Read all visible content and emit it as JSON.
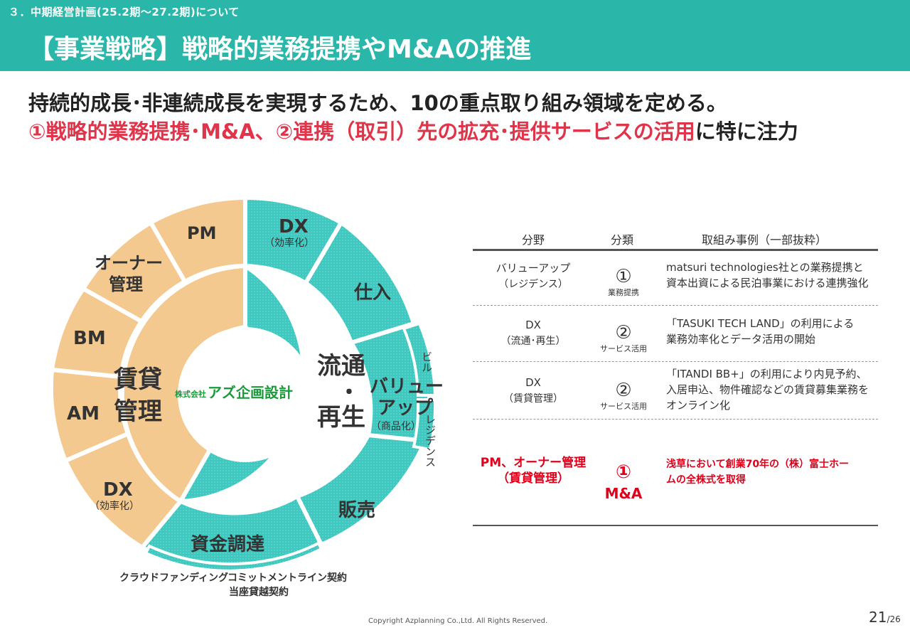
{
  "header": {
    "section": "３．中期経営計画(25.2期～27.2期)について",
    "title": "【事業戦略】戦略的業務提携やM&Aの推進"
  },
  "lead": {
    "line1": "持続的成長･非連続成長を実現するため、10の重点取り組み領域を定める。",
    "line2_a": "①",
    "line2_b": "戦略的業務提携･M&A",
    "line2_c": "、②",
    "line2_d": "連携（取引）先の拡充･提供サービスの活用",
    "line2_e": "に特に注力"
  },
  "diagram": {
    "center_company_prefix": "株式会社",
    "center_company": "アズ企画設計",
    "left_inner_1": "賃貸",
    "left_inner_2": "管理",
    "right_inner_1": "流通",
    "right_inner_2": "・",
    "right_inner_3": "再生",
    "seg_pm": "PM",
    "seg_owner_1": "オーナー",
    "seg_owner_2": "管理",
    "seg_bm": "BM",
    "seg_am": "AM",
    "seg_dx_left": "DX",
    "seg_dx_left_sub": "（効率化）",
    "seg_dx_top": "DX",
    "seg_dx_top_sub": "（効率化）",
    "seg_shiire": "仕入",
    "seg_value_1": "バリュー",
    "seg_value_2": "アップ",
    "seg_value_sub": "（商品化）",
    "seg_biru": "ビル",
    "seg_residence": "レジデンス",
    "seg_hanbai": "販売",
    "seg_shikin": "資金調達",
    "sub_crowd": "クラウドファンディング",
    "sub_commit": "コミットメントライン契約",
    "sub_overdraft": "当座貸越契約",
    "colors": {
      "teal": "#3fc8bf",
      "orange": "#f3c98f"
    }
  },
  "table": {
    "headers": [
      "分野",
      "分類",
      "取組み事例（一部抜粋）"
    ],
    "rows": [
      {
        "field_1": "バリューアップ",
        "field_2": "（レジデンス）",
        "class_num": "①",
        "class_sub": "業務提携",
        "example_1": "matsuri technologies社との業務提携と",
        "example_2": "資本出資による民泊事業における連携強化",
        "example_3": ""
      },
      {
        "field_1": "DX",
        "field_2": "（流通･再生）",
        "class_num": "②",
        "class_sub": "サービス活用",
        "example_1": "「TASUKI TECH LAND」の利用による",
        "example_2": "業務効率化とデータ活用の開始",
        "example_3": ""
      },
      {
        "field_1": "DX",
        "field_2": "（賃貸管理）",
        "class_num": "②",
        "class_sub": "サービス活用",
        "example_1": "「ITANDI BB+」の利用により内見予約、",
        "example_2": "入居申込、物件確認などの賃貸募集業務を",
        "example_3": "オンライン化"
      },
      {
        "field_1": "PM、オーナー管理",
        "field_2": "（賃貸管理）",
        "class_num": "①",
        "class_sub": "M&A",
        "example_1": "浅草において創業70年の（株）富士ホー",
        "example_2": "ムの全株式を取得",
        "example_3": ""
      }
    ]
  },
  "footer": {
    "copyright": "Copyright Azplanning Co.,Ltd. All Rights Reserved.",
    "page": "21",
    "total": "/26"
  }
}
